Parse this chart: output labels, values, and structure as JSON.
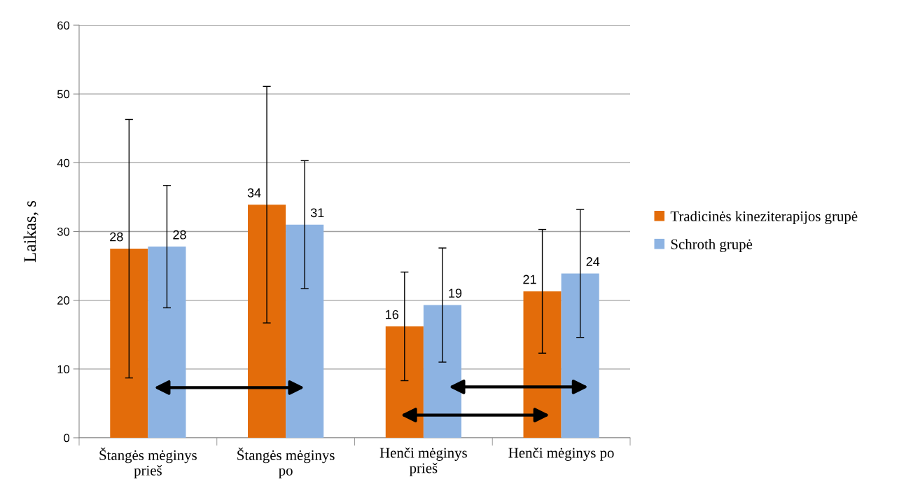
{
  "chart_data": {
    "type": "bar",
    "ylabel": "Laikas, s",
    "categories": [
      "Štangės mėginys\nprieš",
      "Štangės mėginys\npo",
      "Henči mėginys\nprieš",
      "Henči mėginys po"
    ],
    "series": [
      {
        "name": "Tradicinės kineziterapijos grupė",
        "color": "#e36c0a",
        "values": [
          27.5,
          33.9,
          16.2,
          21.3
        ],
        "errors": [
          18.8,
          17.2,
          7.9,
          9.0
        ],
        "value_labels": [
          "28",
          "34",
          "16",
          "21"
        ]
      },
      {
        "name": "Schroth grupė",
        "color": "#8db3e2",
        "values": [
          27.8,
          31.0,
          19.3,
          23.9
        ],
        "errors": [
          8.9,
          9.3,
          8.3,
          9.3
        ],
        "value_labels": [
          "28",
          "31",
          "19",
          "24"
        ]
      }
    ],
    "ylim": [
      0,
      60
    ],
    "yticks": [
      0,
      10,
      20,
      30,
      40,
      50,
      60
    ],
    "grid": "y",
    "legend": "right"
  }
}
